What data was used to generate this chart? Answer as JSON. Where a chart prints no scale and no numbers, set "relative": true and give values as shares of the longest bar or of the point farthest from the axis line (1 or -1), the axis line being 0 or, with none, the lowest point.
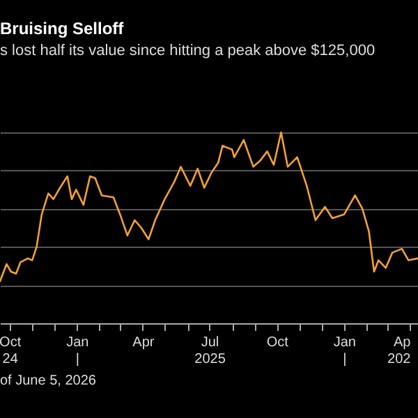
{
  "chart_data": {
    "type": "line",
    "title": "Bruising Selloff",
    "subtitle": "s lost half its value since hitting a peak above $125,000",
    "relative": true,
    "grid": "y",
    "marker": "none",
    "line_style": "solid",
    "annotations": [
      "of June 5, 2026"
    ],
    "xlim": [
      "2024-09-18",
      "2026-04-12"
    ],
    "xticks": [
      {
        "value": "2024-10-01",
        "label": "Oct\n24"
      },
      {
        "value": "2024-11-01",
        "label": null
      },
      {
        "value": "2024-12-01",
        "label": null
      },
      {
        "value": "2025-01-01",
        "label": "Jan\n|"
      },
      {
        "value": "2025-02-01",
        "label": null
      },
      {
        "value": "2025-03-01",
        "label": null
      },
      {
        "value": "2025-04-01",
        "label": "Apr"
      },
      {
        "value": "2025-05-01",
        "label": null
      },
      {
        "value": "2025-06-01",
        "label": null
      },
      {
        "value": "2025-07-01",
        "label": "Jul\n2025"
      },
      {
        "value": "2025-08-01",
        "label": null
      },
      {
        "value": "2025-09-01",
        "label": null
      },
      {
        "value": "2025-10-01",
        "label": "Oct"
      },
      {
        "value": "2025-11-01",
        "label": null
      },
      {
        "value": "2025-12-01",
        "label": null
      },
      {
        "value": "2026-01-01",
        "label": "Jan\n|"
      },
      {
        "value": "2026-02-01",
        "label": null
      },
      {
        "value": "2026-03-01",
        "label": null
      },
      {
        "value": "2026-04-01",
        "label": "Ap\n202"
      }
    ],
    "x": [
      "2024-09-18",
      "2024-09-27",
      "2024-10-03",
      "2024-10-10",
      "2024-10-16",
      "2024-10-26",
      "2024-11-01",
      "2024-11-07",
      "2024-11-14",
      "2024-11-23",
      "2024-11-30",
      "2024-12-09",
      "2024-12-19",
      "2024-12-25",
      "2024-12-31",
      "2025-01-10",
      "2025-01-19",
      "2025-01-26",
      "2025-02-04",
      "2025-02-20",
      "2025-03-02",
      "2025-03-11",
      "2025-03-21",
      "2025-03-30",
      "2025-04-09",
      "2025-04-18",
      "2025-05-01",
      "2025-05-14",
      "2025-05-23",
      "2025-06-05",
      "2025-06-15",
      "2025-06-24",
      "2025-07-04",
      "2025-07-13",
      "2025-07-19",
      "2025-08-01",
      "2025-08-04",
      "2025-08-17",
      "2025-08-30",
      "2025-09-08",
      "2025-09-18",
      "2025-09-27",
      "2025-10-07",
      "2025-10-16",
      "2025-10-29",
      "2025-11-11",
      "2025-11-23",
      "2025-12-06",
      "2025-12-16",
      "2026-01-01",
      "2026-01-16",
      "2026-01-26",
      "2026-02-04",
      "2026-02-11",
      "2026-02-17",
      "2026-02-27",
      "2026-03-08",
      "2026-03-21",
      "2026-03-30",
      "2026-04-12"
    ],
    "series": [
      {
        "color": "#f5a033",
        "values": [
          0.22,
          0.31,
          0.27,
          0.26,
          0.32,
          0.34,
          0.33,
          0.4,
          0.57,
          0.68,
          0.65,
          0.71,
          0.77,
          0.65,
          0.7,
          0.62,
          0.77,
          0.76,
          0.67,
          0.66,
          0.56,
          0.46,
          0.54,
          0.5,
          0.44,
          0.54,
          0.65,
          0.74,
          0.82,
          0.72,
          0.81,
          0.71,
          0.79,
          0.84,
          0.93,
          0.91,
          0.87,
          0.96,
          0.82,
          0.85,
          0.9,
          0.83,
          1.0,
          0.82,
          0.87,
          0.72,
          0.54,
          0.61,
          0.55,
          0.57,
          0.67,
          0.6,
          0.48,
          0.27,
          0.33,
          0.29,
          0.37,
          0.39,
          0.33,
          0.34
        ]
      }
    ]
  }
}
